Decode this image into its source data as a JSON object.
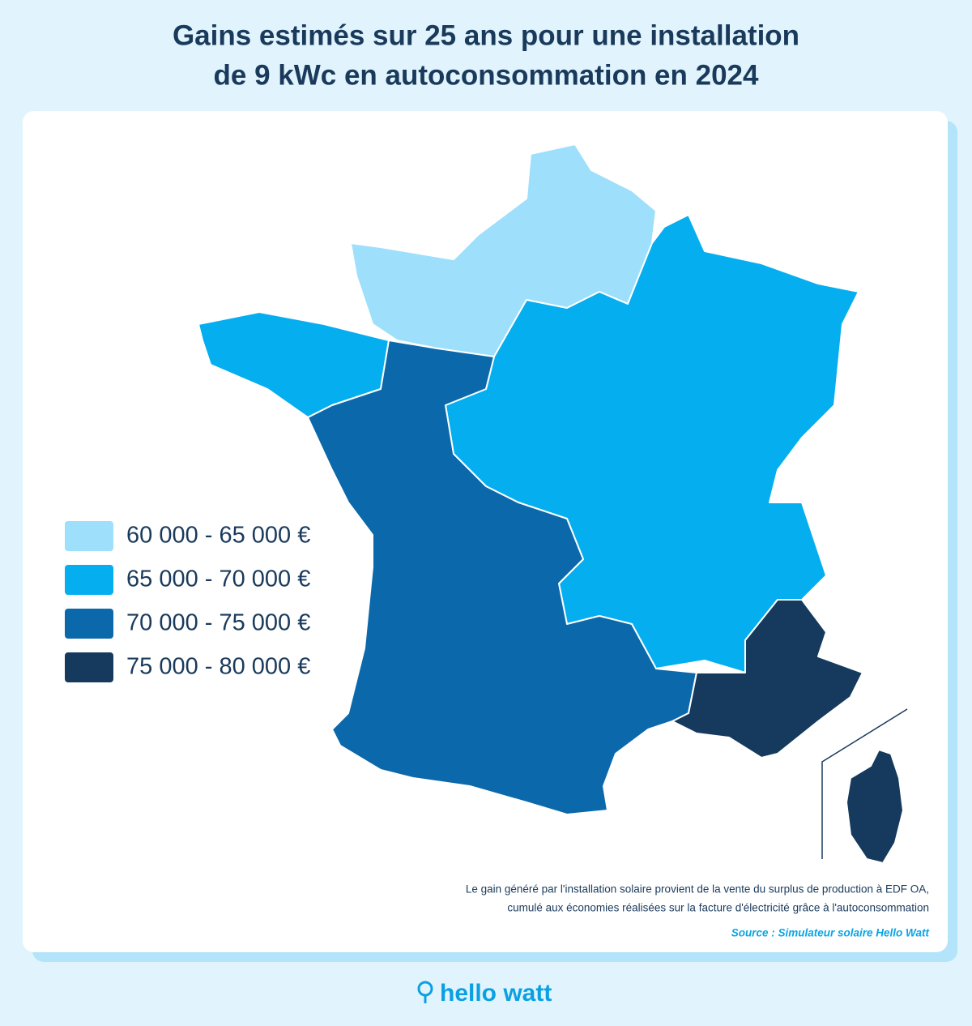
{
  "header": {
    "title_lines": [
      "Gains estimés sur 25 ans pour une installation",
      "de 9 kWc en autoconsommation en 2024"
    ]
  },
  "legend": {
    "items": [
      {
        "label": "60 000 - 65 000 €",
        "color": "#9edffb"
      },
      {
        "label": "65 000 - 70 000 €",
        "color": "#05aeef"
      },
      {
        "label": "70 000 - 75 000 €",
        "color": "#0b68ab"
      },
      {
        "label": "75 000 - 80 000 €",
        "color": "#163a5d"
      }
    ]
  },
  "footer": {
    "note_lines": [
      "Le gain généré par l'installation solaire provient de la vente du surplus de production à EDF OA,",
      "cumulé aux économies réalisées sur la facture d'électricité grâce à l'autoconsommation"
    ],
    "source": "Source : Simulateur solaire Hello Watt"
  },
  "brand": {
    "logo": "hello watt"
  }
}
